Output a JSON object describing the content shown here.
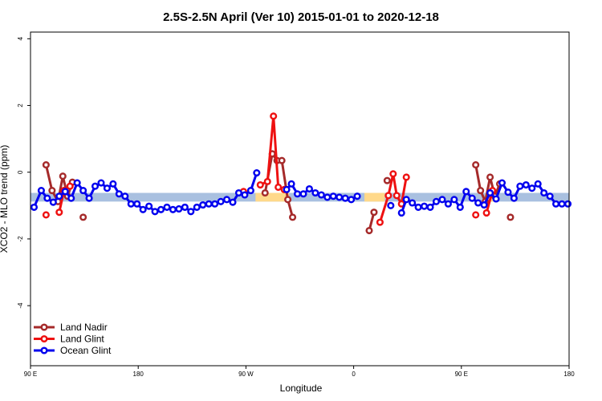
{
  "chart_data": {
    "type": "line",
    "title": "2.5S-2.5N April (Ver 10)   2015-01-01 to 2020-12-18",
    "xlabel": "Longitude",
    "ylabel": "XCO2 - MLO trend (ppm)",
    "x_ticks": [
      {
        "value": 90,
        "label": "90 E"
      },
      {
        "value": 180,
        "label": "180"
      },
      {
        "value": 270,
        "label": "90 W"
      },
      {
        "value": 360,
        "label": "0"
      },
      {
        "value": 450,
        "label": "90 E"
      },
      {
        "value": 540,
        "label": "180"
      }
    ],
    "y_ticks": [
      -4,
      -2,
      0,
      2,
      4
    ],
    "xlim": [
      90,
      540
    ],
    "ylim": [
      -5.8,
      4.2
    ],
    "bands": [
      {
        "x": [
          90,
          540
        ],
        "y": [
          -0.88,
          -0.62
        ],
        "color": "#a9c0e0"
      },
      {
        "x": [
          278,
          306
        ],
        "y": [
          -0.88,
          -0.62
        ],
        "color": "#ffd98a"
      },
      {
        "x": [
          369,
          386
        ],
        "y": [
          -0.88,
          -0.62
        ],
        "color": "#ffd98a"
      },
      {
        "x": [
          470,
          478
        ],
        "y": [
          -0.88,
          -0.62
        ],
        "color": "#ffd98a"
      }
    ],
    "series": [
      {
        "name": "Land Nadir",
        "color": "#a52a2a",
        "segments": [
          {
            "x": [
              103,
              108,
              113,
              117,
              121,
              125
            ],
            "y": [
              0.22,
              -0.55,
              -0.88,
              -0.12,
              -0.72,
              -0.3
            ]
          },
          {
            "x": [
              134
            ],
            "y": [
              -1.35
            ]
          },
          {
            "x": [
              286,
              292,
              296,
              300,
              305,
              309
            ],
            "y": [
              -0.62,
              0.55,
              0.35,
              0.35,
              -0.82,
              -1.35
            ]
          },
          {
            "x": [
              373,
              377
            ],
            "y": [
              -1.75,
              -1.2
            ]
          },
          {
            "x": [
              388
            ],
            "y": [
              -0.25
            ]
          },
          {
            "x": [
              462,
              466,
              470,
              474,
              478,
              482
            ],
            "y": [
              0.22,
              -0.55,
              -0.88,
              -0.15,
              -0.72,
              -0.35
            ]
          },
          {
            "x": [
              491
            ],
            "y": [
              -1.35
            ]
          }
        ]
      },
      {
        "name": "Land Glint",
        "color": "#ee1111",
        "segments": [
          {
            "x": [
              103
            ],
            "y": [
              -1.28
            ]
          },
          {
            "x": [
              114,
              118,
              123
            ],
            "y": [
              -1.2,
              -0.55,
              -0.42
            ]
          },
          {
            "x": [
              268
            ],
            "y": [
              -0.58
            ]
          },
          {
            "x": [
              282,
              288,
              293,
              297,
              302
            ],
            "y": [
              -0.38,
              -0.28,
              1.68,
              -0.45,
              -0.52
            ]
          },
          {
            "x": [
              382,
              389,
              393,
              396,
              400,
              404
            ],
            "y": [
              -1.5,
              -0.7,
              -0.05,
              -0.7,
              -0.95,
              -0.15
            ]
          },
          {
            "x": [
              462
            ],
            "y": [
              -1.28
            ]
          },
          {
            "x": [
              471,
              476
            ],
            "y": [
              -1.22,
              -0.55
            ]
          }
        ]
      },
      {
        "name": "Ocean Glint",
        "color": "#0000ee",
        "segments": [
          {
            "x": [
              93,
              99,
              104,
              109,
              114,
              119,
              124,
              129,
              134,
              139,
              144,
              149,
              154,
              159,
              164,
              169,
              174,
              179,
              184,
              189,
              194,
              199,
              204,
              209,
              214,
              219,
              224,
              229,
              234,
              239,
              244,
              249,
              254,
              259,
              264,
              269,
              274,
              279
            ],
            "y": [
              -1.05,
              -0.55,
              -0.78,
              -0.9,
              -0.72,
              -0.58,
              -0.78,
              -0.32,
              -0.55,
              -0.78,
              -0.42,
              -0.32,
              -0.48,
              -0.35,
              -0.65,
              -0.72,
              -0.95,
              -0.95,
              -1.12,
              -1.02,
              -1.18,
              -1.12,
              -1.05,
              -1.12,
              -1.1,
              -1.05,
              -1.18,
              -1.05,
              -0.98,
              -0.95,
              -0.95,
              -0.88,
              -0.82,
              -0.9,
              -0.62,
              -0.68,
              -0.55,
              -0.02
            ]
          },
          {
            "x": [
              304,
              308,
              313,
              318,
              323,
              328,
              333,
              338,
              343,
              348,
              353,
              358,
              363
            ],
            "y": [
              -0.52,
              -0.35,
              -0.65,
              -0.65,
              -0.5,
              -0.62,
              -0.68,
              -0.75,
              -0.72,
              -0.75,
              -0.78,
              -0.82,
              -0.72
            ]
          },
          {
            "x": [
              391
            ],
            "y": [
              -1.0
            ]
          },
          {
            "x": [
              400,
              404,
              409,
              414,
              419,
              424,
              429,
              434,
              439,
              444,
              449,
              454,
              459,
              464,
              469,
              474,
              479,
              484,
              489,
              494,
              499,
              504,
              509,
              514,
              519,
              524,
              529,
              534,
              539
            ],
            "y": [
              -1.22,
              -0.82,
              -0.92,
              -1.05,
              -1.02,
              -1.05,
              -0.88,
              -0.82,
              -0.95,
              -0.82,
              -1.05,
              -0.58,
              -0.78,
              -0.92,
              -0.98,
              -0.62,
              -0.8,
              -0.32,
              -0.6,
              -0.78,
              -0.42,
              -0.38,
              -0.48,
              -0.35,
              -0.62,
              -0.72,
              -0.95,
              -0.95,
              -0.95
            ]
          }
        ]
      }
    ],
    "legend_position": "bottom-left"
  }
}
